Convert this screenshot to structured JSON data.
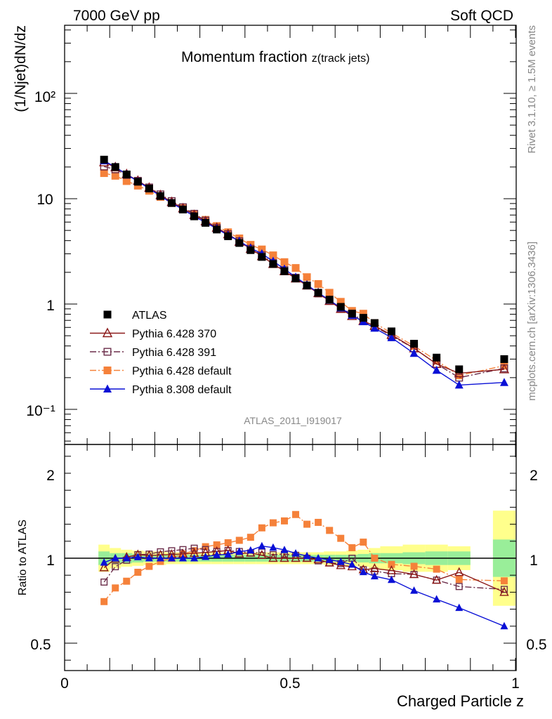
{
  "header": {
    "left": "7000 GeV pp",
    "right": "Soft QCD"
  },
  "side_labels": {
    "rivet": "Rivet 3.1.10, ≥ 1.5M events",
    "mcplots": "mcplots.cern.ch [arXiv:1306.3436]"
  },
  "chart_data": {
    "type": "line",
    "title": "Momentum fraction",
    "title_sub": "z(track jets)",
    "analysis_id": "ATLAS_2011_I919017",
    "xlabel": "Charged Particle z",
    "ylabel": "(1/Njet)dN/dz",
    "ratio_ylabel": "Ratio to ATLAS",
    "xlim": [
      0,
      1
    ],
    "ylim": [
      0.04,
      500
    ],
    "yscale": "log",
    "ratio_ylim": [
      0.35,
      2.3
    ],
    "x_ticks": [
      "0",
      "0.5",
      "1"
    ],
    "y_ticks_main": [
      "10⁻¹",
      "1",
      "10",
      "10²"
    ],
    "ratio_ticks": [
      "0.5",
      "1",
      "2"
    ],
    "legend_position": "lower-left",
    "x": [
      0.0875,
      0.1125,
      0.1375,
      0.1625,
      0.1875,
      0.2125,
      0.2375,
      0.2625,
      0.2875,
      0.3125,
      0.3375,
      0.3625,
      0.3875,
      0.4125,
      0.4375,
      0.4625,
      0.4875,
      0.5125,
      0.5375,
      0.5625,
      0.5875,
      0.6125,
      0.6375,
      0.6625,
      0.6875,
      0.725,
      0.775,
      0.825,
      0.875,
      0.975
    ],
    "uncertainty_band": {
      "x_edges": [
        0.075,
        0.1,
        0.125,
        0.15,
        0.175,
        0.2,
        0.225,
        0.25,
        0.275,
        0.3,
        0.325,
        0.35,
        0.375,
        0.4,
        0.425,
        0.45,
        0.475,
        0.5,
        0.525,
        0.55,
        0.575,
        0.6,
        0.625,
        0.65,
        0.675,
        0.7,
        0.75,
        0.8,
        0.85,
        0.9
      ],
      "stat_half_width": [
        0.04,
        0.03,
        0.03,
        0.025,
        0.02,
        0.02,
        0.02,
        0.02,
        0.02,
        0.02,
        0.02,
        0.02,
        0.02,
        0.02,
        0.02,
        0.02,
        0.02,
        0.02,
        0.02,
        0.02,
        0.02,
        0.02,
        0.02,
        0.025,
        0.03,
        0.03,
        0.035,
        0.04,
        0.04
      ],
      "total_half_width": [
        0.08,
        0.06,
        0.05,
        0.045,
        0.04,
        0.04,
        0.035,
        0.035,
        0.035,
        0.035,
        0.035,
        0.035,
        0.035,
        0.035,
        0.035,
        0.035,
        0.035,
        0.035,
        0.035,
        0.035,
        0.04,
        0.04,
        0.045,
        0.05,
        0.06,
        0.07,
        0.08,
        0.08,
        0.07
      ],
      "last_bin": {
        "x_edges": [
          0.95,
          1.0
        ],
        "stat_half_width": 0.11,
        "total_half_width": 0.28
      }
    },
    "series": [
      {
        "name": "ATLAS",
        "color": "#000000",
        "marker": "square",
        "line": "none",
        "values": [
          23.5,
          20.0,
          17.0,
          14.5,
          12.5,
          10.6,
          9.1,
          7.9,
          6.8,
          5.9,
          5.1,
          4.4,
          3.8,
          3.25,
          2.8,
          2.4,
          2.05,
          1.75,
          1.5,
          1.28,
          1.1,
          0.94,
          0.81,
          0.74,
          0.66,
          0.55,
          0.42,
          0.31,
          0.24,
          0.3
        ]
      },
      {
        "name": "Pythia 6.428 370",
        "color": "#8b1a1a",
        "marker": "triangle-open",
        "line": "solid",
        "values": [
          22.2,
          19.9,
          17.1,
          14.8,
          12.7,
          10.8,
          9.3,
          8.1,
          7.0,
          6.1,
          5.3,
          4.6,
          3.9,
          3.35,
          2.85,
          2.4,
          2.05,
          1.75,
          1.5,
          1.27,
          1.07,
          0.9,
          0.77,
          0.69,
          0.62,
          0.51,
          0.38,
          0.27,
          0.22,
          0.24
        ]
      },
      {
        "name": "Pythia 6.428 391",
        "color": "#6b2d4a",
        "marker": "square-open",
        "line": "dashdot",
        "values": [
          20.2,
          19.0,
          16.8,
          14.8,
          12.8,
          11.0,
          9.5,
          8.3,
          7.2,
          6.2,
          5.3,
          4.6,
          3.95,
          3.35,
          2.9,
          2.45,
          2.1,
          1.78,
          1.5,
          1.26,
          1.07,
          0.91,
          0.81,
          0.69,
          0.61,
          0.5,
          0.38,
          0.27,
          0.2,
          0.245
        ]
      },
      {
        "name": "Pythia 6.428 default",
        "color": "#f5813a",
        "marker": "square",
        "line": "dashdot",
        "values": [
          17.5,
          16.5,
          14.7,
          13.3,
          11.9,
          10.4,
          9.1,
          8.1,
          7.1,
          6.3,
          5.5,
          4.8,
          4.2,
          3.65,
          3.3,
          2.9,
          2.5,
          2.2,
          1.8,
          1.55,
          1.28,
          1.05,
          0.86,
          0.81,
          0.66,
          0.53,
          0.4,
          0.29,
          0.21,
          0.26
        ]
      },
      {
        "name": "Pythia 8.308 default",
        "color": "#0a10d6",
        "marker": "triangle",
        "line": "solid",
        "values": [
          22.9,
          20.0,
          17.0,
          14.6,
          12.5,
          10.6,
          9.1,
          7.9,
          6.8,
          5.95,
          5.2,
          4.5,
          3.95,
          3.4,
          3.0,
          2.55,
          2.15,
          1.8,
          1.52,
          1.28,
          1.09,
          0.92,
          0.78,
          0.68,
          0.59,
          0.48,
          0.34,
          0.235,
          0.17,
          0.18
        ]
      }
    ]
  }
}
